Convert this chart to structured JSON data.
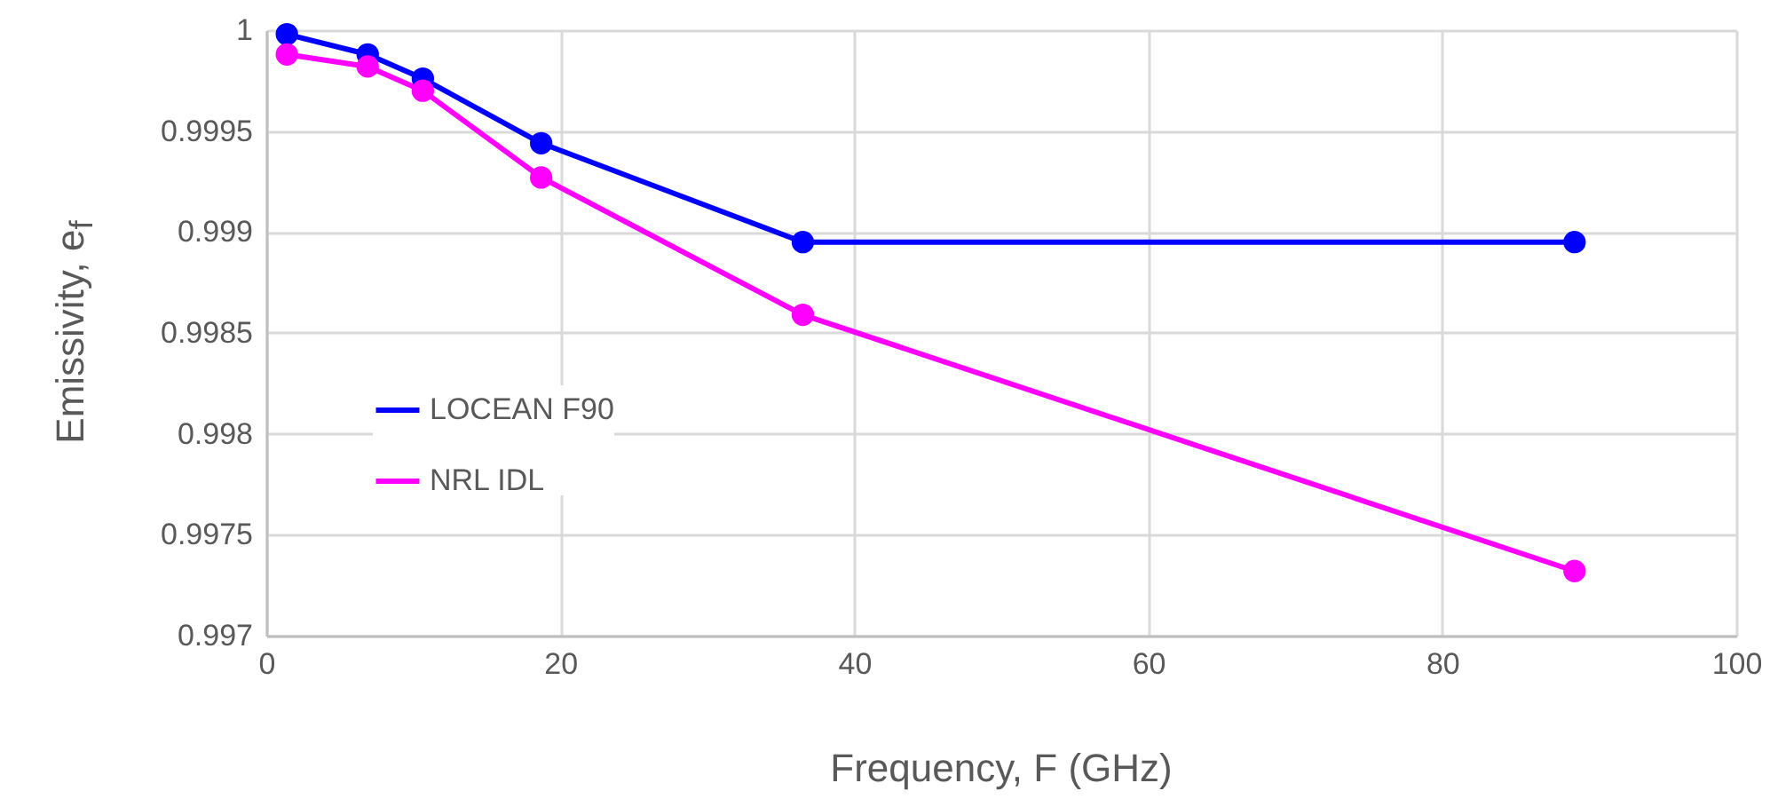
{
  "chart_data": {
    "type": "line",
    "xlabel": "Frequency, F (GHz)",
    "ylabel": "Emissivity,  e$_{f}$",
    "x": [
      1.4,
      6.9,
      10.65,
      18.7,
      36.5,
      89
    ],
    "series": [
      {
        "name": "LOCEAN F90",
        "color": "#0000ff",
        "values": [
          0.99998,
          0.99988,
          0.99976,
          0.99944,
          0.99895,
          0.99895
        ]
      },
      {
        "name": "NRL IDL",
        "color": "#ff00ff",
        "values": [
          0.99988,
          0.99982,
          0.9997,
          0.99927,
          0.99859,
          0.99732
        ]
      }
    ],
    "xlim": [
      0,
      100
    ],
    "xticks": [
      0,
      20,
      40,
      60,
      80,
      100
    ],
    "ylim": [
      0.997,
      1
    ],
    "yticks": [
      0.997,
      0.9975,
      0.998,
      0.9985,
      0.999,
      0.9995,
      1
    ],
    "grid": true,
    "legend": "left",
    "marker": "circle",
    "line_style": "solid"
  }
}
